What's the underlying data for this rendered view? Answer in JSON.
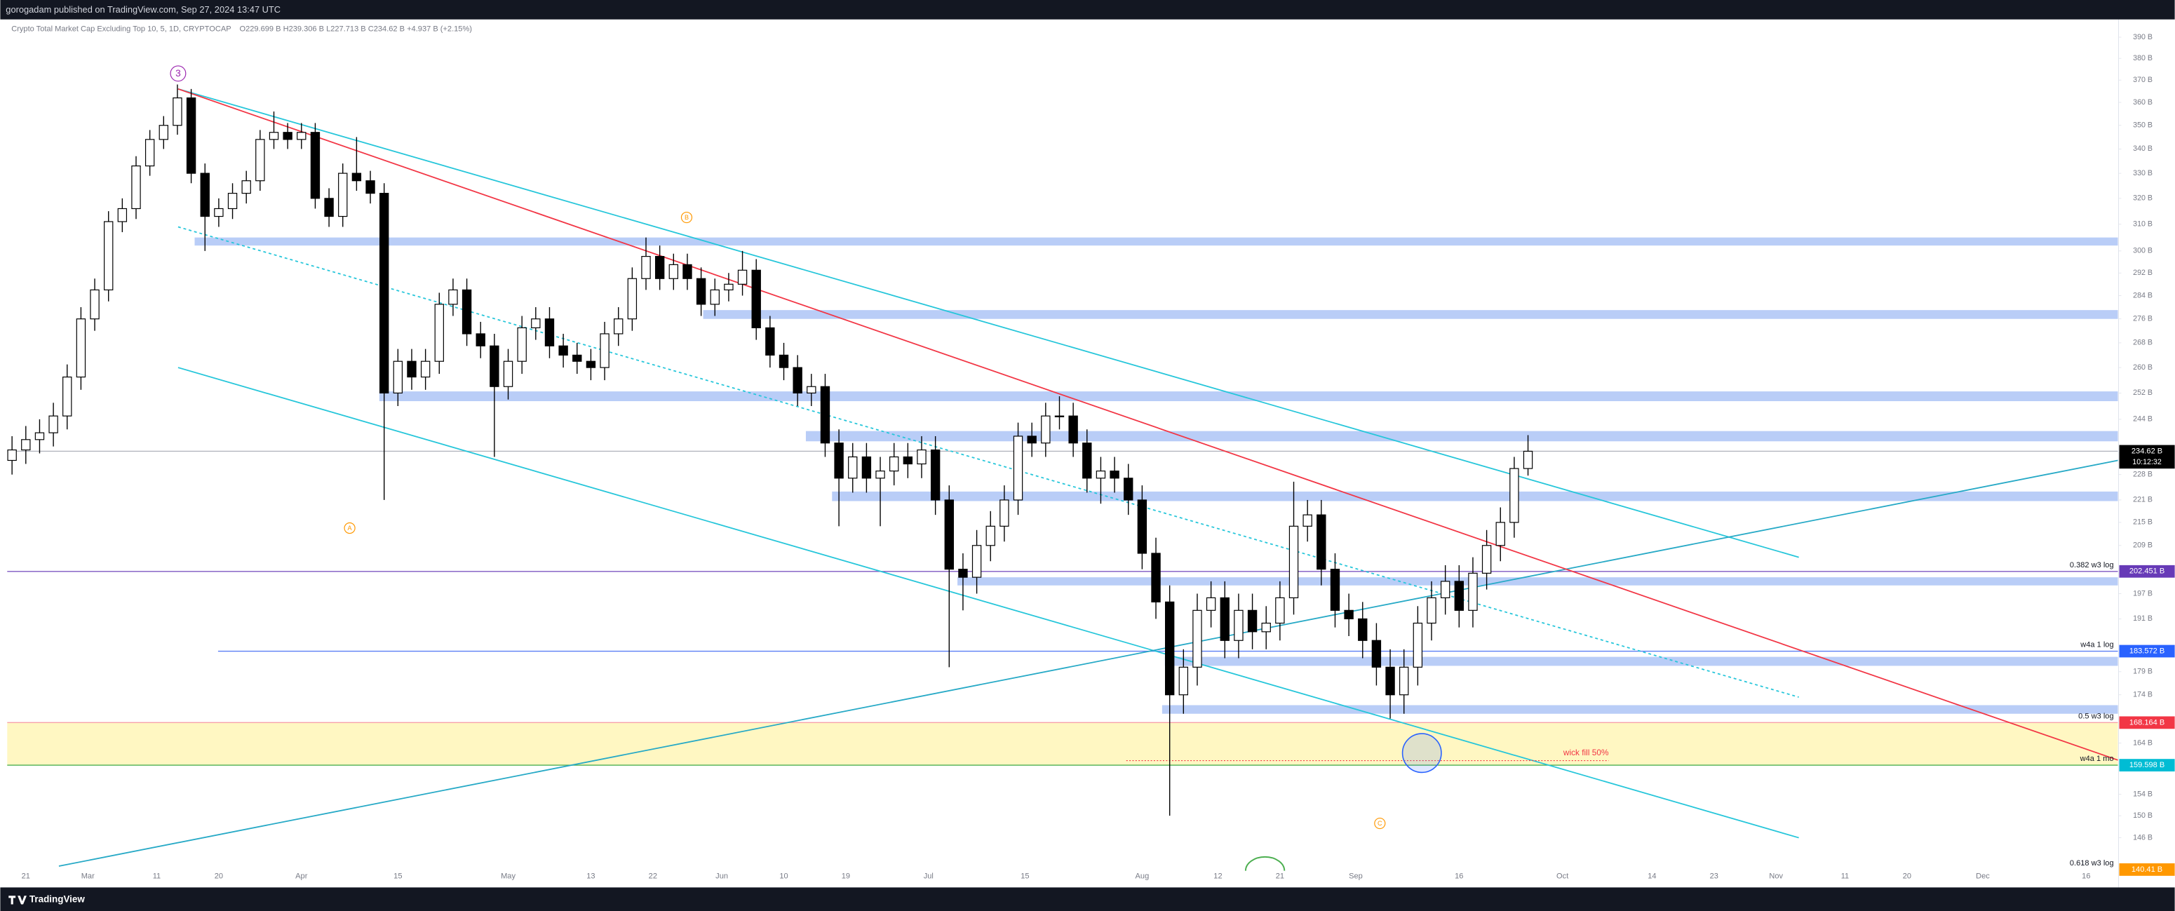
{
  "header": {
    "publisher": "gorogadam published on TradingView.com, Sep 27, 2024 13:47 UTC"
  },
  "chart_data": {
    "type": "candlestick",
    "title": "Crypto Total Market Cap Excluding Top 10, 5, 1D, CRYPTOCAP",
    "ohlc_legend": "O229.699 B H239.306 B L227.713 B C234.62 B +4.937 B (+2.15%)",
    "x": [
      50,
      52,
      54,
      56,
      58,
      60,
      62,
      64,
      66,
      68,
      70,
      72,
      74,
      76,
      78,
      80,
      82,
      84,
      86,
      88,
      90,
      92,
      94,
      96,
      98,
      100,
      102,
      104,
      106,
      108,
      110,
      112,
      114,
      116,
      118,
      120,
      122,
      124,
      126,
      128,
      130,
      132,
      134,
      136,
      138,
      140,
      142,
      144,
      146,
      148,
      150,
      152,
      154,
      156,
      158,
      160,
      162,
      164,
      166,
      168,
      170,
      172,
      174,
      176,
      178,
      180,
      182,
      184,
      186,
      188,
      190,
      192,
      194,
      196,
      198,
      200,
      202,
      204,
      206,
      208,
      210,
      212,
      214,
      216,
      218,
      220,
      222,
      224,
      226,
      228,
      230,
      232,
      234,
      236,
      238,
      240,
      242,
      244,
      246,
      248,
      250,
      252,
      254,
      256,
      258,
      260,
      262,
      264,
      266,
      268,
      270
    ],
    "open": [
      232,
      235,
      238,
      240,
      245,
      257,
      276,
      286,
      311,
      316,
      333,
      344,
      350,
      362,
      330,
      313,
      316,
      322,
      327,
      344,
      347,
      344,
      347,
      320,
      313,
      330,
      327,
      322,
      252,
      262,
      257,
      262,
      281,
      286,
      271,
      267,
      254,
      262,
      273,
      276,
      267,
      264,
      262,
      260,
      271,
      276,
      290,
      298,
      290,
      295,
      290,
      281,
      286,
      288,
      293,
      273,
      264,
      260,
      252,
      254,
      237,
      227,
      233,
      227,
      229,
      233,
      231,
      235,
      221,
      203,
      201,
      209,
      214,
      221,
      239,
      237,
      245,
      245,
      237,
      227,
      229,
      227,
      221,
      207,
      195,
      174,
      180,
      193,
      196,
      186,
      193,
      188,
      190,
      196,
      214,
      217,
      203,
      193,
      191,
      186,
      180,
      174,
      180,
      190,
      196,
      200,
      193,
      202,
      209,
      215,
      229.699
    ],
    "high": [
      239,
      242,
      244,
      249,
      261,
      280,
      290,
      315,
      320,
      337,
      348,
      354,
      368,
      366,
      334,
      320,
      326,
      331,
      348,
      356,
      351,
      351,
      351,
      324,
      334,
      345,
      331,
      326,
      266,
      266,
      266,
      285,
      290,
      290,
      275,
      271,
      266,
      277,
      280,
      280,
      271,
      268,
      266,
      275,
      280,
      294,
      305,
      302,
      299,
      299,
      294,
      290,
      292,
      300,
      297,
      277,
      268,
      264,
      258,
      258,
      241,
      237,
      237,
      233,
      237,
      237,
      239,
      239,
      225,
      207,
      213,
      218,
      225,
      243,
      243,
      249,
      251,
      249,
      241,
      233,
      233,
      231,
      225,
      211,
      199,
      184,
      197,
      200,
      200,
      197,
      197,
      194,
      200,
      226,
      221,
      221,
      207,
      197,
      195,
      190,
      184,
      184,
      194,
      200,
      204,
      204,
      206,
      213,
      219,
      233,
      239.306
    ],
    "low": [
      228,
      231,
      234,
      236,
      241,
      253,
      272,
      282,
      307,
      312,
      329,
      340,
      346,
      326,
      300,
      309,
      312,
      318,
      323,
      340,
      340,
      340,
      316,
      309,
      309,
      323,
      318,
      221,
      248,
      253,
      253,
      258,
      277,
      267,
      263,
      233,
      250,
      258,
      269,
      263,
      260,
      258,
      256,
      256,
      267,
      272,
      286,
      286,
      286,
      286,
      277,
      277,
      282,
      284,
      269,
      260,
      256,
      248,
      248,
      233,
      214,
      223,
      223,
      214,
      225,
      227,
      227,
      217,
      180,
      193,
      197,
      205,
      210,
      217,
      233,
      233,
      241,
      233,
      223,
      220,
      223,
      217,
      203,
      191,
      150,
      170,
      176,
      189,
      182,
      182,
      184,
      184,
      186,
      192,
      210,
      199,
      189,
      187,
      182,
      176,
      169,
      170,
      176,
      186,
      192,
      189,
      189,
      198,
      205,
      211,
      227.713
    ],
    "close": [
      235,
      238,
      240,
      245,
      257,
      276,
      286,
      311,
      316,
      333,
      344,
      350,
      362,
      330,
      313,
      316,
      322,
      327,
      344,
      347,
      344,
      347,
      320,
      313,
      330,
      327,
      322,
      252,
      262,
      257,
      262,
      281,
      286,
      271,
      267,
      254,
      262,
      273,
      276,
      267,
      264,
      262,
      260,
      271,
      276,
      290,
      298,
      290,
      295,
      290,
      281,
      286,
      288,
      293,
      273,
      264,
      260,
      252,
      254,
      237,
      227,
      233,
      227,
      229,
      233,
      231,
      235,
      221,
      203,
      201,
      209,
      214,
      221,
      239,
      237,
      245,
      245,
      237,
      227,
      229,
      227,
      221,
      207,
      195,
      174,
      180,
      193,
      196,
      186,
      193,
      188,
      190,
      196,
      214,
      217,
      203,
      193,
      191,
      186,
      180,
      174,
      180,
      190,
      196,
      200,
      193,
      202,
      209,
      215,
      229.699,
      234.62
    ],
    "color_up": "#ffffff",
    "color_down": "#000000",
    "wick_color": "#000000",
    "xlim": [
      49.3,
      355.6
    ],
    "xticks": [
      {
        "value": 52,
        "label": "21"
      },
      {
        "value": 61,
        "label": "Mar"
      },
      {
        "value": 71,
        "label": "11"
      },
      {
        "value": 80,
        "label": "20"
      },
      {
        "value": 92,
        "label": "Apr"
      },
      {
        "value": 106,
        "label": "15"
      },
      {
        "value": 122,
        "label": "May"
      },
      {
        "value": 134,
        "label": "13"
      },
      {
        "value": 143,
        "label": "22"
      },
      {
        "value": 153,
        "label": "Jun"
      },
      {
        "value": 162,
        "label": "10"
      },
      {
        "value": 171,
        "label": "19"
      },
      {
        "value": 183,
        "label": "Jul"
      },
      {
        "value": 197,
        "label": "15"
      },
      {
        "value": 214,
        "label": "Aug"
      },
      {
        "value": 225,
        "label": "12"
      },
      {
        "value": 234,
        "label": "21"
      },
      {
        "value": 245,
        "label": "Sep"
      },
      {
        "value": 260,
        "label": "16"
      },
      {
        "value": 275,
        "label": "Oct"
      },
      {
        "value": 288,
        "label": "14"
      },
      {
        "value": 297,
        "label": "23"
      },
      {
        "value": 306,
        "label": "Nov"
      },
      {
        "value": 316,
        "label": "11"
      },
      {
        "value": 325,
        "label": "20"
      },
      {
        "value": 336,
        "label": "Dec"
      },
      {
        "value": 351,
        "label": "16"
      }
    ],
    "ylim": [
      140.2,
      398.6
    ],
    "log": true,
    "grid": false,
    "yticks": [
      {
        "value": 390,
        "label": "390 B"
      },
      {
        "value": 380,
        "label": "380 B"
      },
      {
        "value": 370,
        "label": "370 B"
      },
      {
        "value": 360,
        "label": "360 B"
      },
      {
        "value": 350,
        "label": "350 B"
      },
      {
        "value": 340,
        "label": "340 B"
      },
      {
        "value": 330,
        "label": "330 B"
      },
      {
        "value": 320,
        "label": "320 B"
      },
      {
        "value": 310,
        "label": "310 B"
      },
      {
        "value": 300,
        "label": "300 B"
      },
      {
        "value": 292,
        "label": "292 B"
      },
      {
        "value": 284,
        "label": "284 B"
      },
      {
        "value": 276,
        "label": "276 B"
      },
      {
        "value": 268,
        "label": "268 B"
      },
      {
        "value": 260,
        "label": "260 B"
      },
      {
        "value": 252,
        "label": "252 B"
      },
      {
        "value": 244,
        "label": "244 B"
      },
      {
        "value": 228,
        "label": "228 B"
      },
      {
        "value": 221,
        "label": "221 B"
      },
      {
        "value": 215,
        "label": "215 B"
      },
      {
        "value": 209,
        "label": "209 B"
      },
      {
        "value": 197,
        "label": "197 B"
      },
      {
        "value": 191,
        "label": "191 B"
      },
      {
        "value": 179,
        "label": "179 B"
      },
      {
        "value": 174,
        "label": "174 B"
      },
      {
        "value": 164,
        "label": "164 B"
      },
      {
        "value": 154,
        "label": "154 B"
      },
      {
        "value": 150,
        "label": "150 B"
      },
      {
        "value": 146,
        "label": "146 B"
      }
    ],
    "band": {
      "ylim": [
        159.598,
        168.164
      ],
      "color": "#fff7c2"
    },
    "zones": [
      {
        "x_start": 76.5,
        "ylim": [
          302,
          305
        ]
      },
      {
        "x_start": 150.3,
        "ylim": [
          276,
          279
        ]
      },
      {
        "x_start": 103.3,
        "ylim": [
          249.5,
          252.5
        ]
      },
      {
        "x_start": 165.2,
        "ylim": [
          237.5,
          240.5
        ]
      },
      {
        "x_start": 169,
        "ylim": [
          220.7,
          223.3
        ]
      },
      {
        "x_start": 187.2,
        "ylim": [
          199,
          201
        ]
      },
      {
        "x_start": 217.3,
        "ylim": [
          180.3,
          182.3
        ]
      },
      {
        "x_start": 216.9,
        "ylim": [
          170,
          171.8
        ]
      }
    ],
    "zone_color": "#b9cdf7",
    "price_labels": [
      {
        "value": 234.62,
        "label": "234.62 B",
        "color": "#000000",
        "line_color": "#b2b5be"
      },
      {
        "value": 202.451,
        "label": "202.451 B",
        "color": "#673ab7",
        "line_color": "#7e57c2",
        "note": "0.382 w3 log"
      },
      {
        "value": 183.572,
        "label": "183.572 B",
        "color": "#2962ff",
        "line_color": "#5b7ff5",
        "x_start": 79.9,
        "note": "w4a 1 log"
      },
      {
        "value": 168.164,
        "label": "168.164 B",
        "color": "#f23645",
        "line_color": "#f7a1a8",
        "note": "0.5 w3 log"
      },
      {
        "value": 159.598,
        "label": "159.598 B",
        "color": "#00bcd4",
        "line_color": "#4caf50",
        "note": "w4a 1 mo"
      },
      {
        "value": 140.41,
        "label": "140.41 B",
        "color": "#ff9800",
        "note": "0.618 w3 log"
      }
    ],
    "countdown": "10:12:32",
    "trendlines": [
      {
        "x": [
          74.1,
          309.3
        ],
        "y": [
          366,
          206
        ],
        "color": "#26c6da",
        "dashed": false
      },
      {
        "x": [
          74.1,
          309.3
        ],
        "y": [
          309,
          173.5
        ],
        "color": "#26c6da",
        "dashed": true
      },
      {
        "x": [
          74.1,
          309.3
        ],
        "y": [
          260,
          146
        ],
        "color": "#26c6da",
        "dashed": false
      },
      {
        "x": [
          56.8,
          355.6
        ],
        "y": [
          141,
          232
        ],
        "color": "#26a9c6",
        "dashed": false
      },
      {
        "x": [
          74.1,
          355.6
        ],
        "y": [
          366,
          160.6
        ],
        "color": "#f23645",
        "dashed": false
      }
    ],
    "wave_labels": [
      {
        "text": "3",
        "x": 74.1,
        "y": 373,
        "color": "#9c27b0"
      },
      {
        "text": "B",
        "x": 147.9,
        "y": 312.6,
        "color": "#ff9800"
      },
      {
        "text": "A",
        "x": 99,
        "y": 213.5,
        "color": "#ff9800"
      },
      {
        "text": "C",
        "x": 248.5,
        "y": 148.6,
        "color": "#ff9800"
      }
    ],
    "wick_fill": {
      "text": "wick fill 50%",
      "x": [
        211.7,
        281.7
      ],
      "y": 160.5,
      "color": "#f23645"
    },
    "target_circle": {
      "x": 254.6,
      "y": 162,
      "color": "#2962ff"
    }
  },
  "footer": {
    "brand": "TradingView"
  }
}
